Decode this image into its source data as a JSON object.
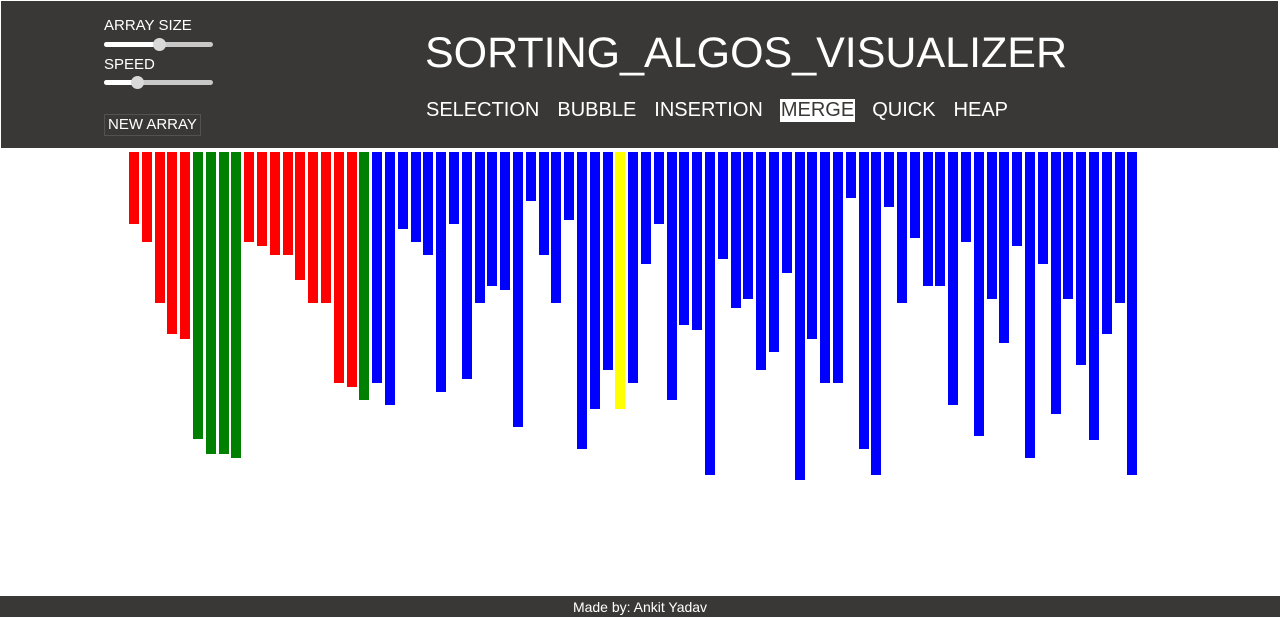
{
  "controls": {
    "array_size_label": "ARRAY SIZE",
    "array_size_value": 0.5,
    "speed_label": "SPEED",
    "speed_value": 0.3,
    "new_array_label": "NEW ARRAY"
  },
  "header": {
    "title": "SORTING_ALGOS_VISUALIZER"
  },
  "algorithms": [
    {
      "label": "SELECTION",
      "active": false
    },
    {
      "label": "BUBBLE",
      "active": false
    },
    {
      "label": "INSERTION",
      "active": false
    },
    {
      "label": "MERGE",
      "active": true
    },
    {
      "label": "QUICK",
      "active": false
    },
    {
      "label": "HEAP",
      "active": false
    }
  ],
  "colors": {
    "header_bg": "#3a3836",
    "default_bar": "#0000ff",
    "compare_bar": "#ff0000",
    "sorted_bar": "#008000",
    "current_bar": "#ffff00"
  },
  "bars": [
    {
      "value": 72,
      "state": "compare"
    },
    {
      "value": 90,
      "state": "compare"
    },
    {
      "value": 151,
      "state": "compare"
    },
    {
      "value": 182,
      "state": "compare"
    },
    {
      "value": 187,
      "state": "compare"
    },
    {
      "value": 287,
      "state": "sorted"
    },
    {
      "value": 302,
      "state": "sorted"
    },
    {
      "value": 302,
      "state": "sorted"
    },
    {
      "value": 306,
      "state": "sorted"
    },
    {
      "value": 90,
      "state": "compare"
    },
    {
      "value": 94,
      "state": "compare"
    },
    {
      "value": 103,
      "state": "compare"
    },
    {
      "value": 103,
      "state": "compare"
    },
    {
      "value": 128,
      "state": "compare"
    },
    {
      "value": 151,
      "state": "compare"
    },
    {
      "value": 151,
      "state": "compare"
    },
    {
      "value": 231,
      "state": "compare"
    },
    {
      "value": 235,
      "state": "compare"
    },
    {
      "value": 248,
      "state": "sorted"
    },
    {
      "value": 231,
      "state": "default"
    },
    {
      "value": 253,
      "state": "default"
    },
    {
      "value": 77,
      "state": "default"
    },
    {
      "value": 90,
      "state": "default"
    },
    {
      "value": 103,
      "state": "default"
    },
    {
      "value": 240,
      "state": "default"
    },
    {
      "value": 72,
      "state": "default"
    },
    {
      "value": 227,
      "state": "default"
    },
    {
      "value": 151,
      "state": "default"
    },
    {
      "value": 134,
      "state": "default"
    },
    {
      "value": 138,
      "state": "default"
    },
    {
      "value": 275,
      "state": "default"
    },
    {
      "value": 49,
      "state": "default"
    },
    {
      "value": 103,
      "state": "default"
    },
    {
      "value": 151,
      "state": "default"
    },
    {
      "value": 68,
      "state": "default"
    },
    {
      "value": 297,
      "state": "default"
    },
    {
      "value": 257,
      "state": "default"
    },
    {
      "value": 218,
      "state": "default"
    },
    {
      "value": 257,
      "state": "current"
    },
    {
      "value": 231,
      "state": "default"
    },
    {
      "value": 112,
      "state": "default"
    },
    {
      "value": 72,
      "state": "default"
    },
    {
      "value": 248,
      "state": "default"
    },
    {
      "value": 173,
      "state": "default"
    },
    {
      "value": 178,
      "state": "default"
    },
    {
      "value": 323,
      "state": "default"
    },
    {
      "value": 107,
      "state": "default"
    },
    {
      "value": 156,
      "state": "default"
    },
    {
      "value": 147,
      "state": "default"
    },
    {
      "value": 218,
      "state": "default"
    },
    {
      "value": 200,
      "state": "default"
    },
    {
      "value": 121,
      "state": "default"
    },
    {
      "value": 328,
      "state": "default"
    },
    {
      "value": 187,
      "state": "default"
    },
    {
      "value": 231,
      "state": "default"
    },
    {
      "value": 231,
      "state": "default"
    },
    {
      "value": 46,
      "state": "default"
    },
    {
      "value": 297,
      "state": "default"
    },
    {
      "value": 323,
      "state": "default"
    },
    {
      "value": 55,
      "state": "default"
    },
    {
      "value": 151,
      "state": "default"
    },
    {
      "value": 86,
      "state": "default"
    },
    {
      "value": 134,
      "state": "default"
    },
    {
      "value": 134,
      "state": "default"
    },
    {
      "value": 253,
      "state": "default"
    },
    {
      "value": 90,
      "state": "default"
    },
    {
      "value": 284,
      "state": "default"
    },
    {
      "value": 147,
      "state": "default"
    },
    {
      "value": 191,
      "state": "default"
    },
    {
      "value": 94,
      "state": "default"
    },
    {
      "value": 306,
      "state": "default"
    },
    {
      "value": 112,
      "state": "default"
    },
    {
      "value": 262,
      "state": "default"
    },
    {
      "value": 147,
      "state": "default"
    },
    {
      "value": 213,
      "state": "default"
    },
    {
      "value": 288,
      "state": "default"
    },
    {
      "value": 182,
      "state": "default"
    },
    {
      "value": 151,
      "state": "default"
    },
    {
      "value": 323,
      "state": "default"
    }
  ],
  "footer": {
    "credit": "Made by: Ankit Yadav"
  }
}
